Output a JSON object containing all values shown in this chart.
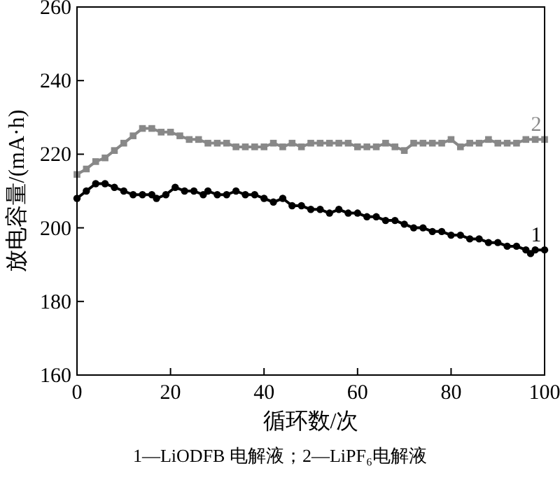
{
  "chart_data": {
    "type": "line",
    "xlabel": "循环数/次",
    "ylabel": "放电容量/(mA·h)",
    "xlim": [
      0,
      100
    ],
    "xticks": [
      0,
      20,
      40,
      60,
      80,
      100
    ],
    "ylim": [
      160,
      260
    ],
    "yticks": [
      160,
      180,
      200,
      220,
      240,
      260
    ],
    "grid": false,
    "annotations": [
      "1—LiODFB 电解液；2—LiPF₆电解液"
    ],
    "series": [
      {
        "name": "1",
        "color": "#000000",
        "marker": "circle",
        "x": [
          0,
          2,
          4,
          6,
          8,
          10,
          12,
          14,
          16,
          17,
          19,
          21,
          23,
          25,
          27,
          28,
          30,
          32,
          34,
          36,
          38,
          40,
          42,
          44,
          46,
          48,
          50,
          52,
          54,
          56,
          58,
          60,
          62,
          64,
          66,
          68,
          70,
          72,
          74,
          76,
          78,
          80,
          82,
          84,
          86,
          88,
          90,
          92,
          94,
          96,
          97,
          98,
          100
        ],
        "values": [
          208,
          210,
          212,
          212,
          211,
          210,
          209,
          209,
          209,
          208,
          209,
          211,
          210,
          210,
          209,
          210,
          209,
          209,
          210,
          209,
          209,
          208,
          207,
          208,
          206,
          206,
          205,
          205,
          204,
          205,
          204,
          204,
          203,
          203,
          202,
          202,
          201,
          200,
          200,
          199,
          199,
          198,
          198,
          197,
          197,
          196,
          196,
          195,
          195,
          194,
          193,
          194,
          194
        ]
      },
      {
        "name": "2",
        "color": "#888888",
        "marker": "square",
        "x": [
          0,
          2,
          4,
          6,
          8,
          10,
          12,
          14,
          16,
          18,
          20,
          22,
          24,
          26,
          28,
          30,
          32,
          34,
          36,
          38,
          40,
          42,
          44,
          46,
          48,
          50,
          52,
          54,
          56,
          58,
          60,
          62,
          64,
          66,
          68,
          70,
          72,
          74,
          76,
          78,
          80,
          82,
          84,
          86,
          88,
          90,
          92,
          94,
          96,
          98,
          100
        ],
        "values": [
          214.5,
          216,
          218,
          219,
          221,
          223,
          225,
          227,
          227,
          226,
          226,
          225,
          224,
          224,
          223,
          223,
          223,
          222,
          222,
          222,
          222,
          223,
          222,
          223,
          222,
          223,
          223,
          223,
          223,
          223,
          222,
          222,
          222,
          223,
          222,
          221,
          223,
          223,
          223,
          223,
          224,
          222,
          223,
          223,
          224,
          223,
          223,
          223,
          224,
          224,
          224
        ]
      }
    ]
  }
}
